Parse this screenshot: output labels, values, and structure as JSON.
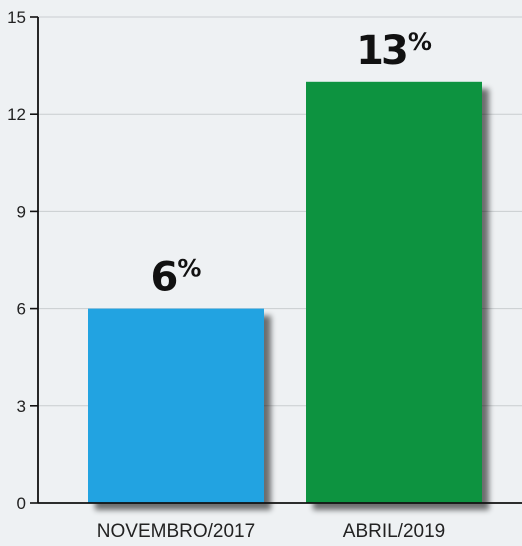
{
  "chart_data": {
    "type": "bar",
    "categories": [
      "NOVEMBRO/2017",
      "ABRIL/2019"
    ],
    "values": [
      6,
      13
    ],
    "data_labels": [
      {
        "number": "6",
        "unit": "%"
      },
      {
        "number": "13",
        "unit": "%"
      }
    ],
    "bar_colors": [
      "#22a3e1",
      "#0a9340"
    ],
    "ylim": [
      0,
      15
    ],
    "yticks": [
      0,
      3,
      6,
      9,
      12,
      15
    ],
    "grid": true,
    "title": "",
    "xlabel": "",
    "ylabel": ""
  }
}
